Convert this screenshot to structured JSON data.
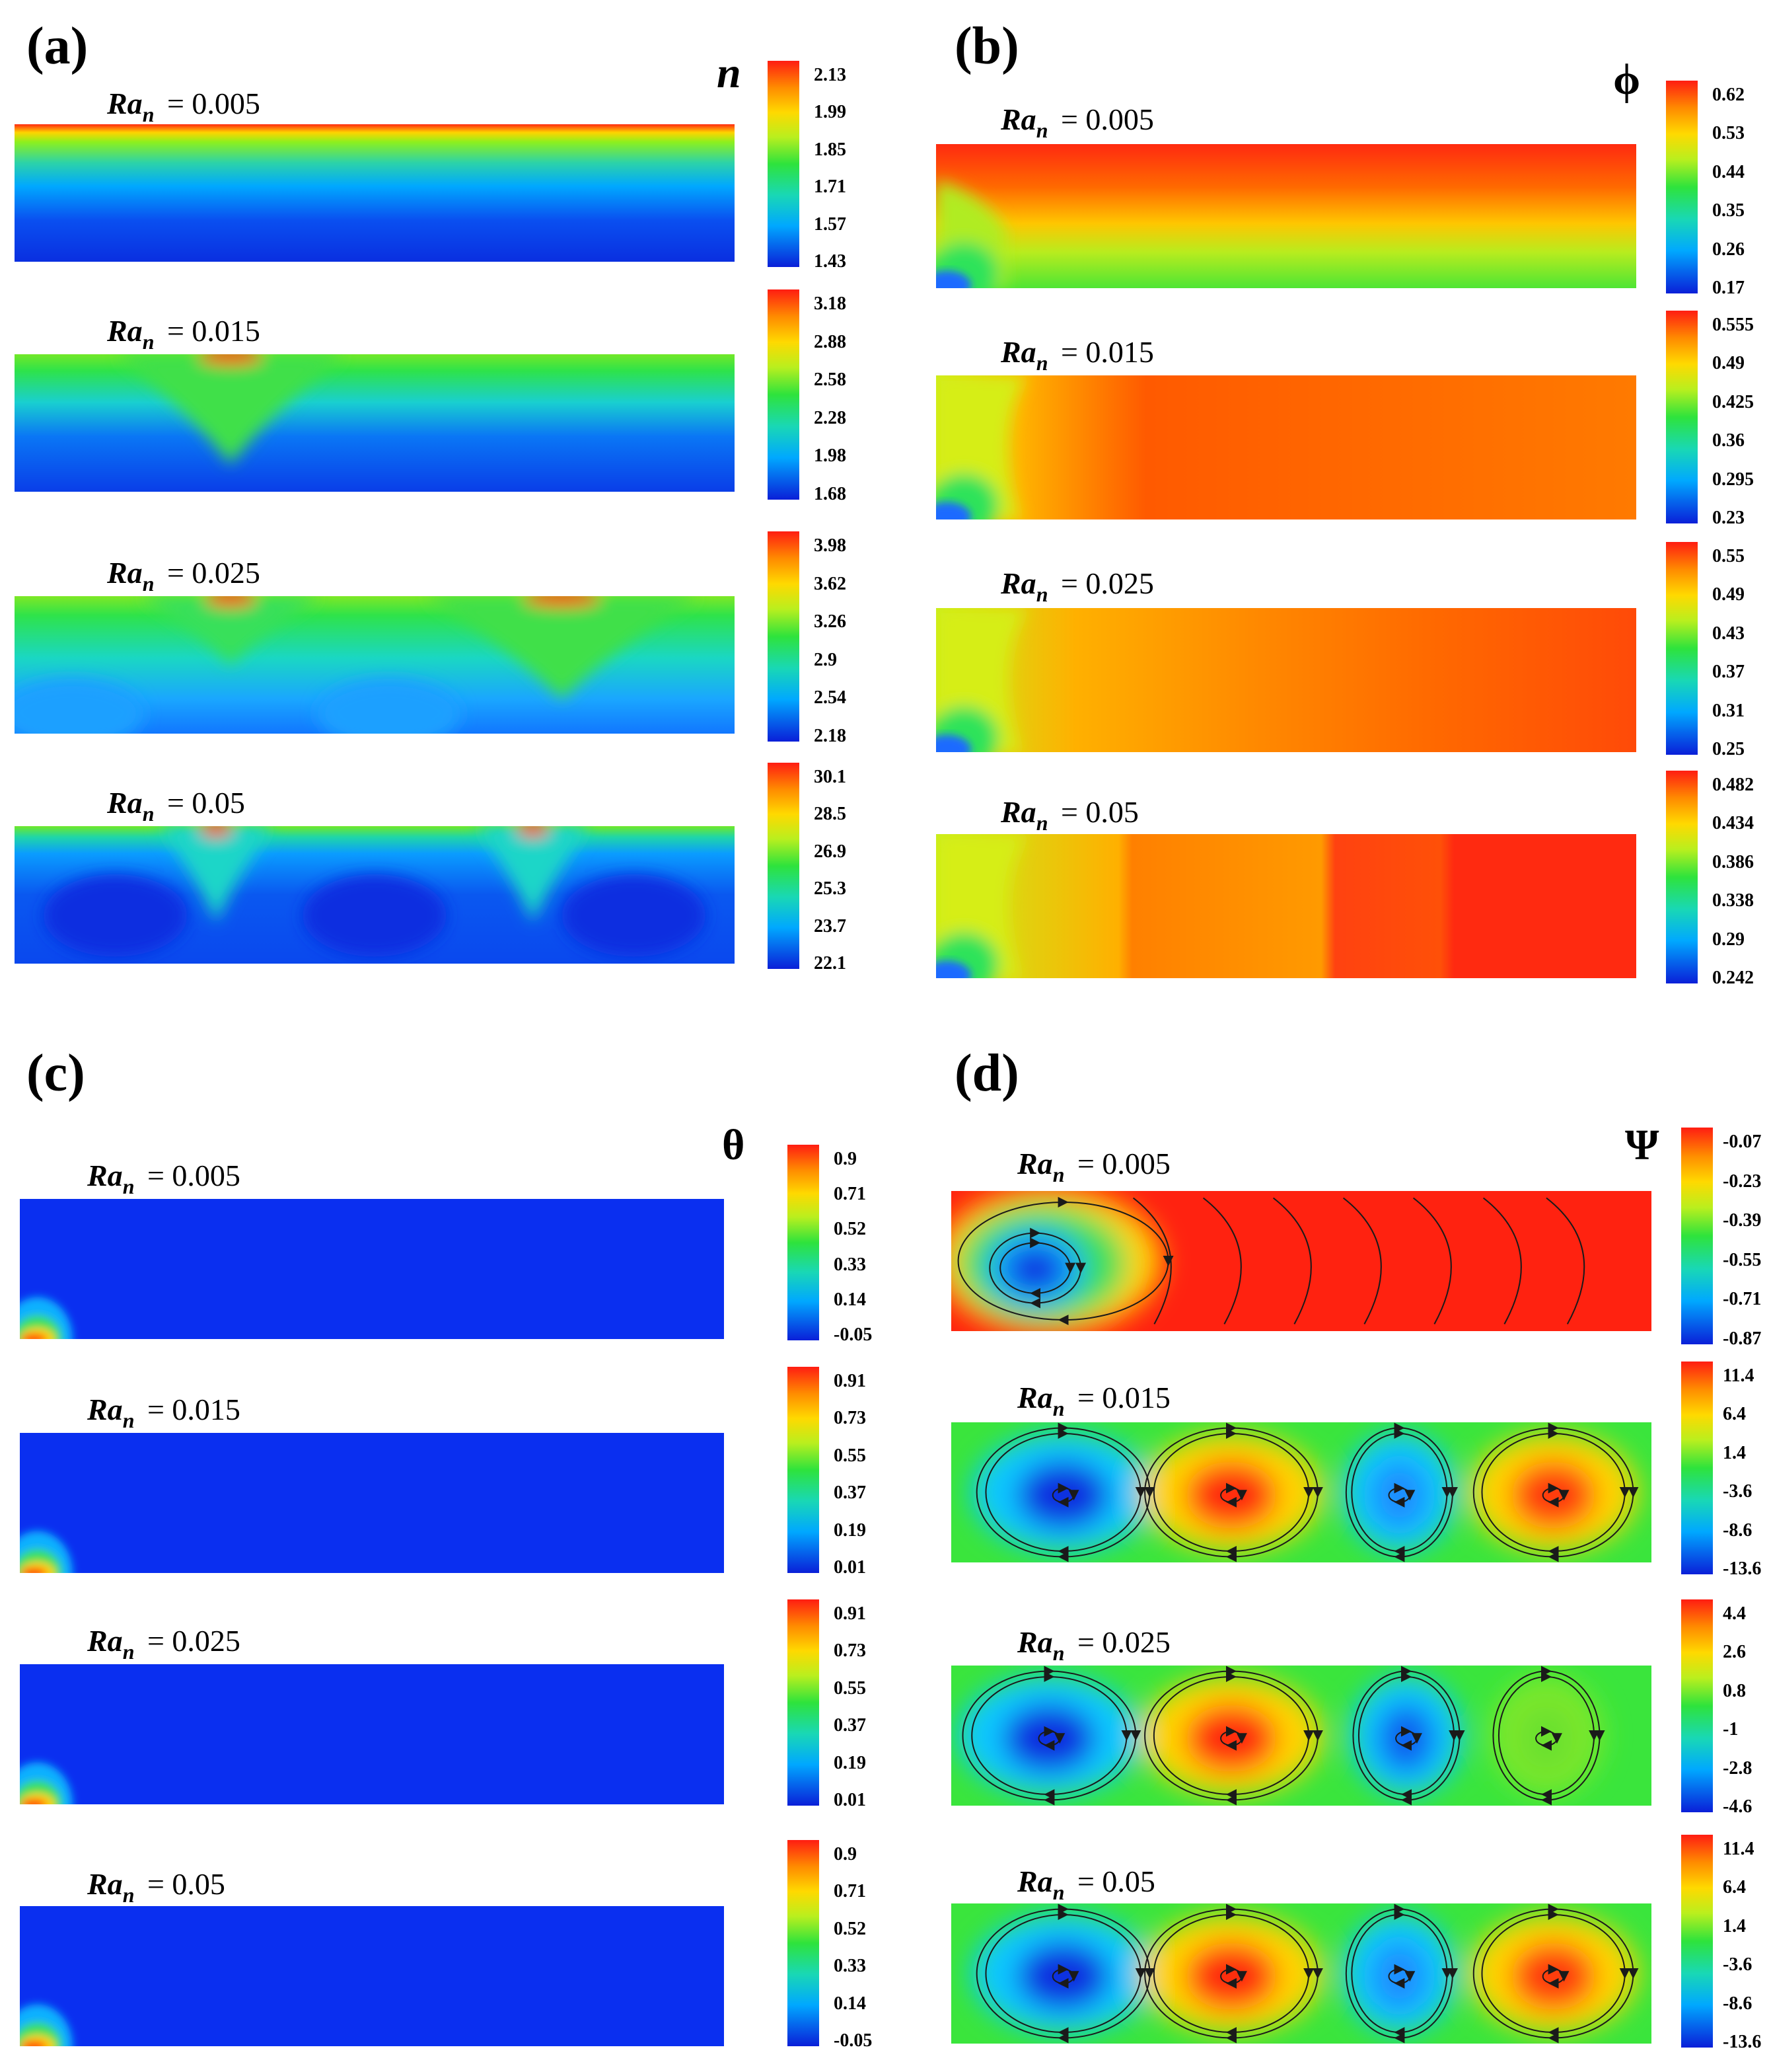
{
  "chart_data": [
    {
      "type": "heatmap",
      "panel": "(a)",
      "variable": "n",
      "rows": [
        {
          "label": {
            "prefix": "Ra",
            "sub": "n",
            "value": " = 0.005"
          },
          "colorbar_ticks": [
            "2.13",
            "1.99",
            "1.85",
            "1.71",
            "1.57",
            "1.43"
          ]
        },
        {
          "label": {
            "prefix": "Ra",
            "sub": "n",
            "value": " = 0.015"
          },
          "colorbar_ticks": [
            "3.18",
            "2.88",
            "2.58",
            "2.28",
            "1.98",
            "1.68"
          ]
        },
        {
          "label": {
            "prefix": "Ra",
            "sub": "n",
            "value": " = 0.025"
          },
          "colorbar_ticks": [
            "3.98",
            "3.62",
            "3.26",
            "2.9",
            "2.54",
            "2.18"
          ]
        },
        {
          "label": {
            "prefix": "Ra",
            "sub": "n",
            "value": " = 0.05"
          },
          "colorbar_ticks": [
            "30.1",
            "28.5",
            "26.9",
            "25.3",
            "23.7",
            "22.1"
          ]
        }
      ]
    },
    {
      "type": "heatmap",
      "panel": "(b)",
      "variable": "ϕ",
      "rows": [
        {
          "label": {
            "prefix": "Ra",
            "sub": "n",
            "value": " = 0.005"
          },
          "colorbar_ticks": [
            "0.62",
            "0.53",
            "0.44",
            "0.35",
            "0.26",
            "0.17"
          ]
        },
        {
          "label": {
            "prefix": "Ra",
            "sub": "n",
            "value": " = 0.015"
          },
          "colorbar_ticks": [
            "0.555",
            "0.49",
            "0.425",
            "0.36",
            "0.295",
            "0.23"
          ]
        },
        {
          "label": {
            "prefix": "Ra",
            "sub": "n",
            "value": " = 0.025"
          },
          "colorbar_ticks": [
            "0.55",
            "0.49",
            "0.43",
            "0.37",
            "0.31",
            "0.25"
          ]
        },
        {
          "label": {
            "prefix": "Ra",
            "sub": "n",
            "value": " = 0.05"
          },
          "colorbar_ticks": [
            "0.482",
            "0.434",
            "0.386",
            "0.338",
            "0.29",
            "0.242"
          ]
        }
      ]
    },
    {
      "type": "heatmap",
      "panel": "(c)",
      "variable": "θ",
      "rows": [
        {
          "label": {
            "prefix": "Ra",
            "sub": "n",
            "value": " = 0.005"
          },
          "colorbar_ticks": [
            "0.9",
            "0.71",
            "0.52",
            "0.33",
            "0.14",
            "-0.05"
          ]
        },
        {
          "label": {
            "prefix": "Ra",
            "sub": "n",
            "value": " = 0.015"
          },
          "colorbar_ticks": [
            "0.91",
            "0.73",
            "0.55",
            "0.37",
            "0.19",
            "0.01"
          ]
        },
        {
          "label": {
            "prefix": "Ra",
            "sub": "n",
            "value": " = 0.025"
          },
          "colorbar_ticks": [
            "0.91",
            "0.73",
            "0.55",
            "0.37",
            "0.19",
            "0.01"
          ]
        },
        {
          "label": {
            "prefix": "Ra",
            "sub": "n",
            "value": " = 0.05"
          },
          "colorbar_ticks": [
            "0.9",
            "0.71",
            "0.52",
            "0.33",
            "0.14",
            "-0.05"
          ]
        }
      ]
    },
    {
      "type": "heatmap",
      "panel": "(d)",
      "variable": "Ψ",
      "rows": [
        {
          "label": {
            "prefix": "Ra",
            "sub": "n",
            "value": " = 0.005"
          },
          "colorbar_ticks": [
            "-0.07",
            "-0.23",
            "-0.39",
            "-0.55",
            "-0.71",
            "-0.87"
          ]
        },
        {
          "label": {
            "prefix": "Ra",
            "sub": "n",
            "value": " = 0.015"
          },
          "colorbar_ticks": [
            "11.4",
            "6.4",
            "1.4",
            "-3.6",
            "-8.6",
            "-13.6"
          ]
        },
        {
          "label": {
            "prefix": "Ra",
            "sub": "n",
            "value": " = 0.025"
          },
          "colorbar_ticks": [
            "4.4",
            "2.6",
            "0.8",
            "-1",
            "-2.8",
            "-4.6"
          ]
        },
        {
          "label": {
            "prefix": "Ra",
            "sub": "n",
            "value": " = 0.05"
          },
          "colorbar_ticks": [
            "11.4",
            "6.4",
            "1.4",
            "-3.6",
            "-8.6",
            "-13.6"
          ]
        }
      ]
    }
  ],
  "colors": {
    "high": "#ff1d12",
    "mid": "#2ee33c",
    "low": "#0a1fd8",
    "streamline": "#1a1a1a"
  }
}
